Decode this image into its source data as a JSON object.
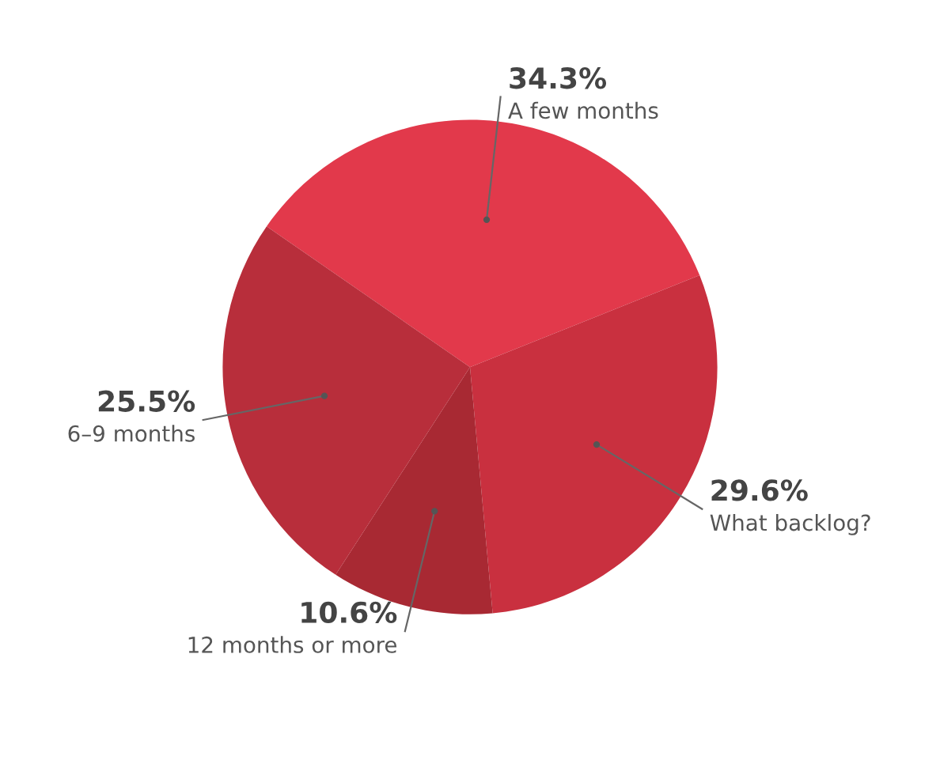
{
  "chart_data": {
    "type": "pie",
    "categories": [
      "A few months",
      "What backlog?",
      "12 months or more",
      "6–9 months"
    ],
    "values": [
      34.3,
      29.6,
      10.6,
      25.5
    ],
    "colors": [
      "#e2394b",
      "#c9303f",
      "#a82933",
      "#b82e3b"
    ],
    "value_labels": [
      "34.3%",
      "29.6%",
      "10.6%",
      "25.5%"
    ]
  }
}
